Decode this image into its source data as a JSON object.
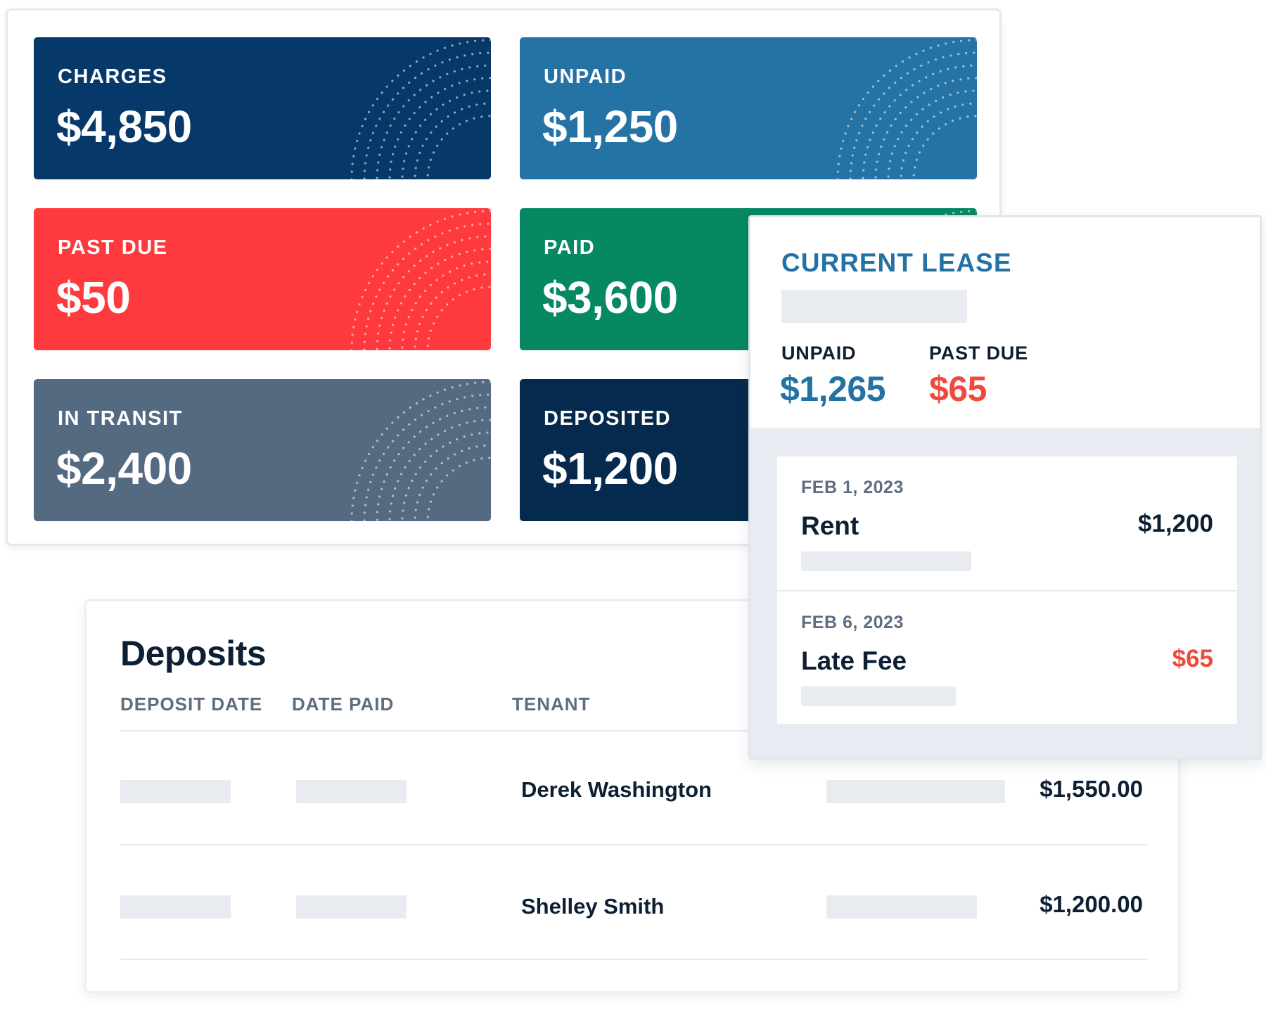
{
  "summary": {
    "cards": [
      {
        "label": "CHARGES",
        "value": "$4,850",
        "color": "#06386a"
      },
      {
        "label": "UNPAID",
        "value": "$1,250",
        "color": "#2572a4"
      },
      {
        "label": "PAST DUE",
        "value": "$50",
        "color": "#fe3a3e"
      },
      {
        "label": "PAID",
        "value": "$3,600",
        "color": "#068963"
      },
      {
        "label": "IN TRANSIT",
        "value": "$2,400",
        "color": "#546a80"
      },
      {
        "label": "DEPOSITED",
        "value": "$1,200",
        "color": "#062a4d"
      }
    ]
  },
  "deposits": {
    "title": "Deposits",
    "columns": [
      "DEPOSIT DATE",
      "DATE PAID",
      "TENANT"
    ],
    "rows": [
      {
        "tenant": "Derek Washington",
        "amount": "$1,550.00"
      },
      {
        "tenant": "Shelley Smith",
        "amount": "$1,200.00"
      }
    ]
  },
  "lease": {
    "title": "CURRENT LEASE",
    "unpaid_label": "UNPAID",
    "unpaid_value": "$1,265",
    "past_due_label": "PAST DUE",
    "past_due_value": "$65",
    "unpaid_color": "#2471a3",
    "past_due_color": "#f04a3e",
    "charges": [
      {
        "date": "FEB 1, 2023",
        "name": "Rent",
        "amount": "$1,200",
        "amount_color": "#0d1f33"
      },
      {
        "date": "FEB 6, 2023",
        "name": "Late Fee",
        "amount": "$65",
        "amount_color": "#f04a3e"
      }
    ]
  }
}
